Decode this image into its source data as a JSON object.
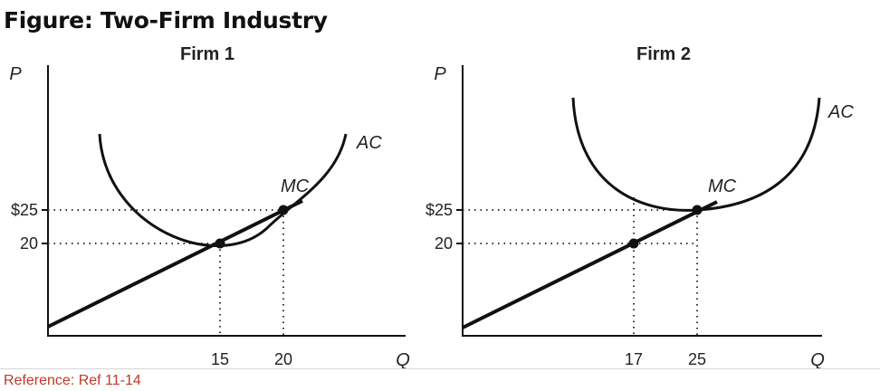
{
  "figure_title": "Figure: Two-Firm Industry",
  "reference": "Reference: Ref 11-14",
  "panels": [
    {
      "title": "Firm 1",
      "y_axis_label": "P",
      "x_axis_label": "Q",
      "price_ticks": [
        "$25",
        "20"
      ],
      "quantity_ticks": [
        "15",
        "20"
      ],
      "curve_labels": {
        "ac": "AC",
        "mc": "MC"
      }
    },
    {
      "title": "Firm 2",
      "y_axis_label": "P",
      "x_axis_label": "Q",
      "price_ticks": [
        "$25",
        "20"
      ],
      "quantity_ticks": [
        "17",
        "25"
      ],
      "curve_labels": {
        "ac": "AC",
        "mc": "MC"
      }
    }
  ]
}
